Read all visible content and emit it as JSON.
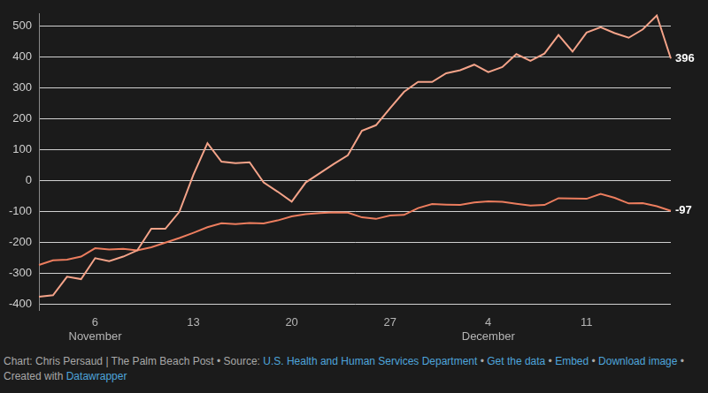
{
  "chart_data": {
    "type": "line",
    "categories": [
      null,
      null,
      null,
      null,
      [
        "6",
        "November"
      ],
      null,
      null,
      null,
      null,
      null,
      null,
      "13",
      null,
      null,
      null,
      null,
      null,
      null,
      "20",
      null,
      null,
      null,
      null,
      null,
      null,
      "27",
      null,
      null,
      null,
      null,
      null,
      null,
      [
        "4",
        "December"
      ],
      null,
      null,
      null,
      null,
      null,
      null,
      "11",
      null,
      null,
      null,
      null,
      null,
      null
    ],
    "series": [
      {
        "color": "#f4a389",
        "values": [
          -375,
          -370,
          -310,
          -318,
          -250,
          -260,
          -245,
          -225,
          -155,
          -155,
          -100,
          20,
          122,
          62,
          57,
          60,
          -5,
          -35,
          -67,
          -5,
          25,
          55,
          83,
          162,
          180,
          235,
          288,
          320,
          320,
          348,
          358,
          376,
          352,
          368,
          410,
          388,
          412,
          472,
          418,
          480,
          497,
          478,
          463,
          490,
          535,
          396
        ],
        "value_labels": [
          null,
          null,
          null,
          null,
          null,
          null,
          null,
          null,
          null,
          null,
          null,
          null,
          null,
          null,
          null,
          null,
          null,
          null,
          null,
          null,
          null,
          null,
          null,
          null,
          null,
          null,
          null,
          null,
          null,
          null,
          null,
          null,
          null,
          null,
          null,
          null,
          null,
          null,
          null,
          null,
          null,
          null,
          null,
          null,
          null,
          "396"
        ]
      },
      {
        "color": "#ec7d5e",
        "values": [
          -272,
          -257,
          -255,
          -245,
          -218,
          -222,
          -220,
          -225,
          -215,
          -200,
          -185,
          -168,
          -150,
          -137,
          -140,
          -136,
          -138,
          -128,
          -115,
          -108,
          -104,
          -102,
          -103,
          -118,
          -123,
          -112,
          -110,
          -88,
          -75,
          -77,
          -78,
          -70,
          -66,
          -68,
          -74,
          -80,
          -78,
          -56,
          -57,
          -58,
          -42,
          -55,
          -73,
          -72,
          -82,
          -97
        ],
        "value_labels": [
          null,
          null,
          null,
          null,
          null,
          null,
          null,
          null,
          null,
          null,
          null,
          null,
          null,
          null,
          null,
          null,
          null,
          null,
          null,
          null,
          null,
          null,
          null,
          null,
          null,
          null,
          null,
          null,
          null,
          null,
          null,
          null,
          null,
          null,
          null,
          null,
          null,
          null,
          null,
          null,
          null,
          null,
          null,
          null,
          null,
          "-97"
        ]
      }
    ],
    "ylim": [
      -420,
      540
    ],
    "yticks": [
      -400,
      -300,
      -200,
      -100,
      0,
      100,
      200,
      300,
      400,
      500
    ],
    "grid": true,
    "caption": {
      "credit": "Chart: Chris Persaud | The Palm Beach Post",
      "separator": "•",
      "source_label": "Source:",
      "source": "U.S. Health and Human Services Department",
      "links": [
        "Get the data",
        "Embed",
        "Download image"
      ],
      "tool_label": "Created with",
      "tool": "Datawrapper"
    }
  }
}
